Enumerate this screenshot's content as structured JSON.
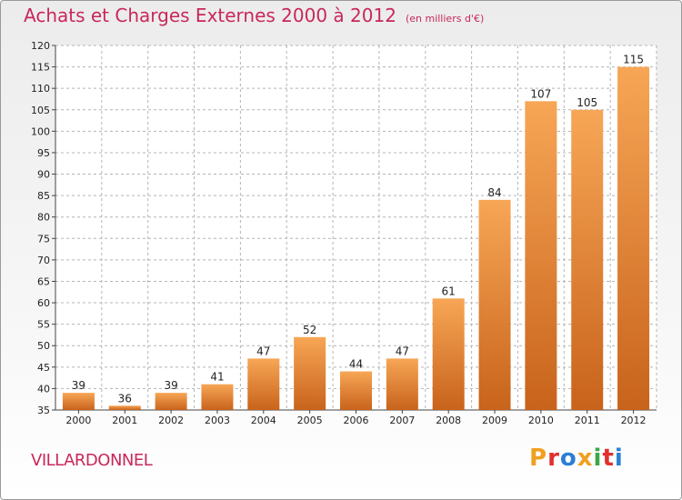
{
  "header": {
    "title": "Achats et Charges Externes 2000 à 2012",
    "subtitle": "(en milliers d'€)"
  },
  "footer": {
    "city": "VILLARDONNEL",
    "brand": "Proxiti",
    "brand_colors": [
      "#f0a020",
      "#e03030",
      "#2a7fd4",
      "#f0a020",
      "#3aa845",
      "#e03030",
      "#2a7fd4"
    ]
  },
  "colors": {
    "title": "#c8285a",
    "bar_top": "#f7a656",
    "bar_bottom": "#c8631b",
    "grid": "#b4b4b4",
    "axis_text": "#222222"
  },
  "chart_data": {
    "type": "bar",
    "categories": [
      "2000",
      "2001",
      "2002",
      "2003",
      "2004",
      "2005",
      "2006",
      "2007",
      "2008",
      "2009",
      "2010",
      "2011",
      "2012"
    ],
    "values": [
      39,
      36,
      39,
      41,
      47,
      52,
      44,
      47,
      61,
      84,
      107,
      105,
      115
    ],
    "ylim": [
      35,
      120
    ],
    "yticks": [
      35,
      40,
      45,
      50,
      55,
      60,
      65,
      70,
      75,
      80,
      85,
      90,
      95,
      100,
      105,
      110,
      115,
      120
    ],
    "grid": true
  }
}
